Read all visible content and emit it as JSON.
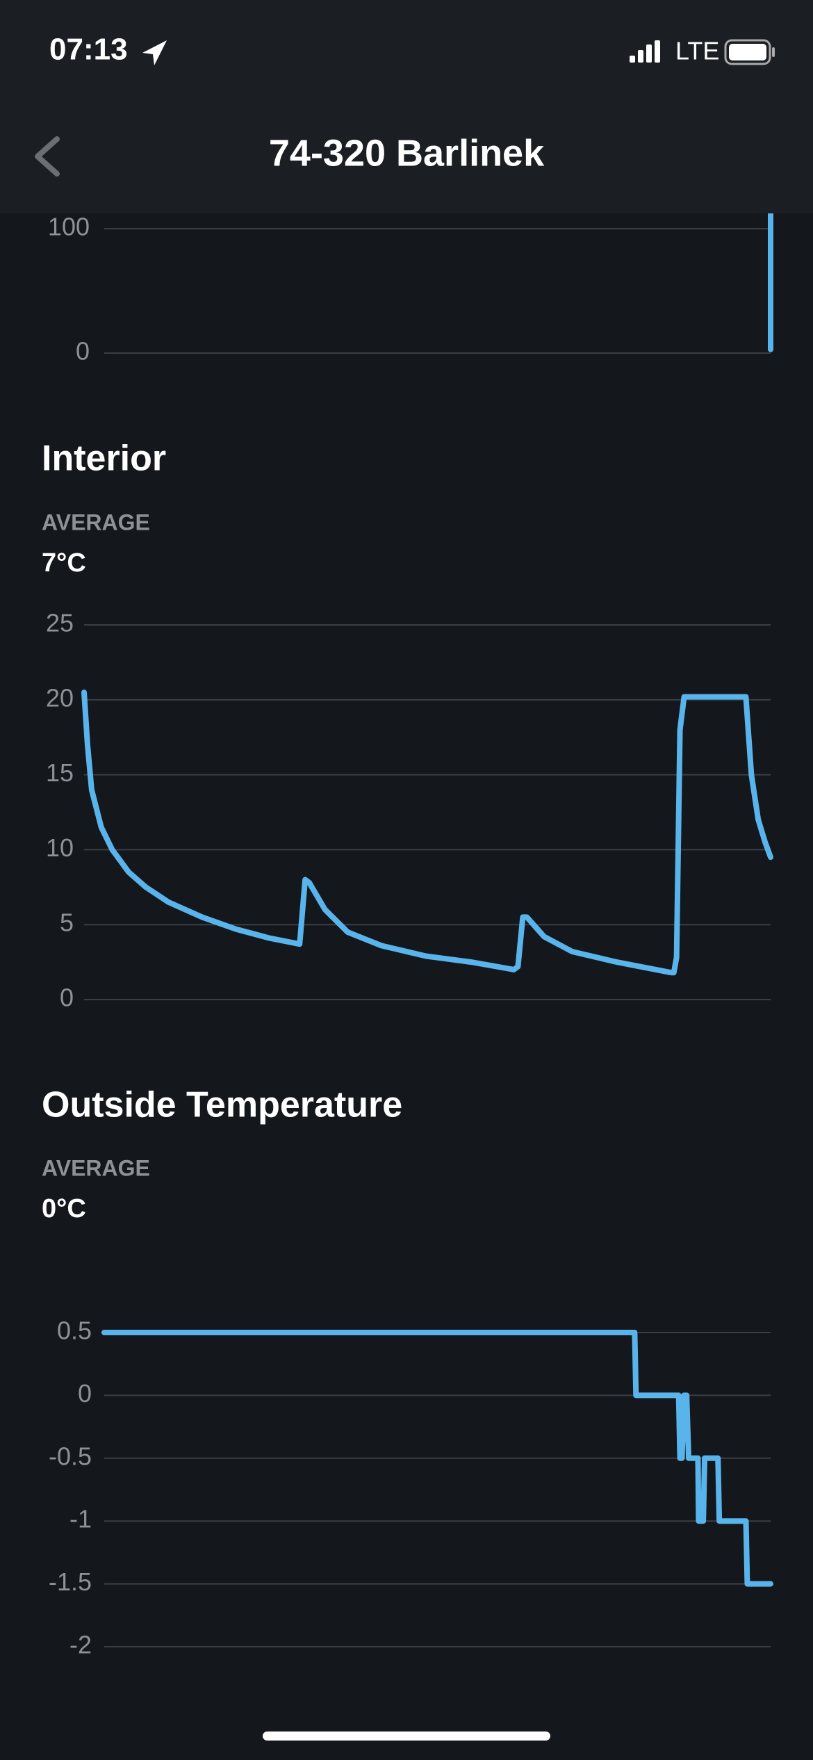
{
  "status_bar": {
    "time": "07:13",
    "network": "LTE"
  },
  "header": {
    "title": "74-320 Barlinek"
  },
  "chart_data": [
    {
      "type": "line",
      "color": "#5ab4ec",
      "grid": true,
      "xlim": [
        0,
        100
      ],
      "ylim": [
        0,
        100
      ],
      "yticks": [
        0,
        100
      ],
      "x": [
        100,
        100
      ],
      "values": [
        113,
        3
      ]
    },
    {
      "type": "line",
      "title": "Interior",
      "stat_label": "AVERAGE",
      "stat_value": "7°C",
      "color": "#5ab4ec",
      "grid": true,
      "xlim": [
        0,
        100
      ],
      "ylim": [
        0,
        25
      ],
      "yticks": [
        0,
        5,
        10,
        15,
        20,
        25
      ],
      "x": [
        0,
        0.5,
        1.1,
        2.5,
        4.1,
        6.5,
        9.0,
        12.3,
        17.2,
        22.1,
        27.0,
        31.4,
        32.2,
        32.8,
        35.1,
        38.4,
        43.3,
        49.8,
        56.4,
        62.6,
        63.2,
        63.9,
        64.5,
        67.0,
        71.1,
        77.6,
        85.5,
        85.9,
        86.3,
        86.8,
        87.4,
        96.4,
        97.2,
        98.2,
        99.2,
        100
      ],
      "values": [
        20.5,
        17,
        14,
        11.5,
        10,
        8.5,
        7.5,
        6.5,
        5.5,
        4.7,
        4.1,
        3.7,
        8,
        7.8,
        6,
        4.5,
        3.6,
        2.9,
        2.5,
        2.0,
        2.2,
        5.5,
        5.5,
        4.2,
        3.2,
        2.5,
        1.8,
        1.8,
        2.8,
        18,
        20.2,
        20.2,
        15,
        12,
        10.5,
        9.5
      ]
    },
    {
      "type": "step",
      "title": "Outside Temperature",
      "stat_label": "AVERAGE",
      "stat_value": "0°C",
      "color": "#5ab4ec",
      "grid": true,
      "xlim": [
        0,
        100
      ],
      "ylim": [
        -2,
        0.5
      ],
      "yticks": [
        -2,
        -1.5,
        -1,
        -0.5,
        0,
        0.5
      ],
      "x": [
        0,
        79.6,
        79.8,
        86.2,
        86.4,
        86.7,
        87.0,
        87.4,
        87.7,
        89.1,
        89.2,
        89.9,
        90.1,
        92.1,
        92.3,
        96.3,
        96.5,
        100
      ],
      "values": [
        0.5,
        0.5,
        0,
        0,
        -0.5,
        -0.5,
        0,
        0,
        -0.5,
        -0.5,
        -1,
        -1,
        -0.5,
        -0.5,
        -1,
        -1,
        -1.5,
        -1.5
      ]
    }
  ]
}
